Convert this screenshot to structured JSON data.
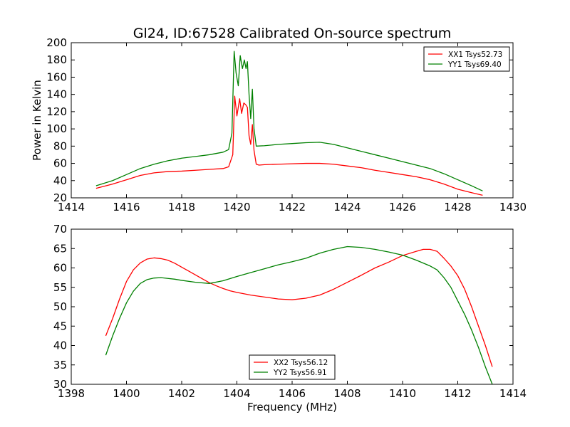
{
  "title": "Gl24, ID:67528 Calibrated On-source spectrum",
  "colors": {
    "red": "#ff0000",
    "green": "#008000",
    "axis": "#000000",
    "background": "#ffffff"
  },
  "chart_data": [
    {
      "type": "line",
      "title": "Gl24, ID:67528 Calibrated On-source spectrum",
      "xlabel": "",
      "ylabel": "Power in Kelvin",
      "xlim": [
        1414,
        1430
      ],
      "ylim": [
        20,
        200
      ],
      "xticks": [
        1414,
        1416,
        1418,
        1420,
        1422,
        1424,
        1426,
        1428,
        1430
      ],
      "yticks": [
        20,
        40,
        60,
        80,
        100,
        120,
        140,
        160,
        180,
        200
      ],
      "grid": false,
      "legend_position": "top-right",
      "series": [
        {
          "name": "XX1 Tsys52.73",
          "color": "#ff0000",
          "points": [
            [
              1414.9,
              31
            ],
            [
              1415.5,
              36
            ],
            [
              1416.0,
              41
            ],
            [
              1416.5,
              46
            ],
            [
              1417.0,
              49
            ],
            [
              1417.5,
              50.5
            ],
            [
              1418.0,
              51
            ],
            [
              1418.5,
              52
            ],
            [
              1419.0,
              53
            ],
            [
              1419.5,
              54
            ],
            [
              1419.7,
              56
            ],
            [
              1419.85,
              70
            ],
            [
              1419.92,
              138
            ],
            [
              1420.0,
              115
            ],
            [
              1420.1,
              135
            ],
            [
              1420.17,
              118
            ],
            [
              1420.25,
              130
            ],
            [
              1420.32,
              128
            ],
            [
              1420.38,
              125
            ],
            [
              1420.44,
              92
            ],
            [
              1420.5,
              82
            ],
            [
              1420.56,
              105
            ],
            [
              1420.62,
              75
            ],
            [
              1420.7,
              59
            ],
            [
              1420.8,
              58
            ],
            [
              1421.0,
              58.5
            ],
            [
              1421.5,
              59
            ],
            [
              1422.0,
              59.5
            ],
            [
              1422.5,
              60
            ],
            [
              1423.0,
              60
            ],
            [
              1423.5,
              59
            ],
            [
              1424.0,
              57
            ],
            [
              1424.5,
              55
            ],
            [
              1425.0,
              52
            ],
            [
              1425.5,
              49.5
            ],
            [
              1426.0,
              47
            ],
            [
              1426.5,
              44.5
            ],
            [
              1427.0,
              41
            ],
            [
              1427.5,
              36
            ],
            [
              1428.0,
              30
            ],
            [
              1428.5,
              26
            ],
            [
              1428.9,
              23
            ]
          ]
        },
        {
          "name": "YY1 Tsys69.40",
          "color": "#008000",
          "points": [
            [
              1414.9,
              34
            ],
            [
              1415.5,
              40
            ],
            [
              1416.0,
              47
            ],
            [
              1416.5,
              54
            ],
            [
              1417.0,
              59
            ],
            [
              1417.5,
              63
            ],
            [
              1418.0,
              66
            ],
            [
              1418.5,
              68
            ],
            [
              1419.0,
              70
            ],
            [
              1419.5,
              73
            ],
            [
              1419.7,
              76
            ],
            [
              1419.82,
              95
            ],
            [
              1419.9,
              190
            ],
            [
              1419.97,
              165
            ],
            [
              1420.05,
              150
            ],
            [
              1420.12,
              185
            ],
            [
              1420.2,
              170
            ],
            [
              1420.27,
              180
            ],
            [
              1420.33,
              170
            ],
            [
              1420.38,
              178
            ],
            [
              1420.44,
              140
            ],
            [
              1420.5,
              112
            ],
            [
              1420.56,
              146
            ],
            [
              1420.62,
              100
            ],
            [
              1420.7,
              80
            ],
            [
              1421.0,
              80.5
            ],
            [
              1421.5,
              82
            ],
            [
              1422.0,
              83
            ],
            [
              1422.5,
              84
            ],
            [
              1423.0,
              84.5
            ],
            [
              1423.5,
              82
            ],
            [
              1424.0,
              78
            ],
            [
              1424.5,
              74
            ],
            [
              1425.0,
              70
            ],
            [
              1425.5,
              66
            ],
            [
              1426.0,
              62
            ],
            [
              1426.5,
              58
            ],
            [
              1427.0,
              54
            ],
            [
              1427.5,
              48
            ],
            [
              1428.0,
              41
            ],
            [
              1428.5,
              34
            ],
            [
              1428.9,
              28
            ]
          ]
        }
      ]
    },
    {
      "type": "line",
      "title": "",
      "xlabel": "Frequency (MHz)",
      "ylabel": "",
      "xlim": [
        1398,
        1414
      ],
      "ylim": [
        30,
        70
      ],
      "xticks": [
        1398,
        1400,
        1402,
        1404,
        1406,
        1408,
        1410,
        1412,
        1414
      ],
      "yticks": [
        30,
        35,
        40,
        45,
        50,
        55,
        60,
        65,
        70
      ],
      "grid": false,
      "legend_position": "bottom-center",
      "series": [
        {
          "name": "XX2 Tsys56.12",
          "color": "#ff0000",
          "points": [
            [
              1399.25,
              42.5
            ],
            [
              1399.5,
              47
            ],
            [
              1399.75,
              52
            ],
            [
              1400.0,
              56.5
            ],
            [
              1400.25,
              59.5
            ],
            [
              1400.5,
              61.3
            ],
            [
              1400.75,
              62.3
            ],
            [
              1401.0,
              62.6
            ],
            [
              1401.25,
              62.4
            ],
            [
              1401.5,
              62
            ],
            [
              1401.75,
              61.2
            ],
            [
              1402.0,
              60.2
            ],
            [
              1402.25,
              59.2
            ],
            [
              1402.5,
              58.2
            ],
            [
              1402.75,
              57.2
            ],
            [
              1403.0,
              56.2
            ],
            [
              1403.25,
              55.4
            ],
            [
              1403.5,
              54.7
            ],
            [
              1403.75,
              54.1
            ],
            [
              1404.0,
              53.7
            ],
            [
              1404.5,
              53
            ],
            [
              1405.0,
              52.5
            ],
            [
              1405.5,
              52
            ],
            [
              1406.0,
              51.8
            ],
            [
              1406.5,
              52.2
            ],
            [
              1407.0,
              53
            ],
            [
              1407.5,
              54.5
            ],
            [
              1408.0,
              56.3
            ],
            [
              1408.5,
              58.1
            ],
            [
              1409.0,
              60
            ],
            [
              1409.5,
              61.5
            ],
            [
              1410.0,
              63.2
            ],
            [
              1410.5,
              64.3
            ],
            [
              1410.75,
              64.8
            ],
            [
              1411.0,
              64.8
            ],
            [
              1411.25,
              64.3
            ],
            [
              1411.5,
              62.5
            ],
            [
              1411.75,
              60.5
            ],
            [
              1412.0,
              58
            ],
            [
              1412.25,
              54.5
            ],
            [
              1412.5,
              50
            ],
            [
              1412.75,
              45
            ],
            [
              1413.0,
              40
            ],
            [
              1413.25,
              34.5
            ]
          ]
        },
        {
          "name": "YY2 Tsys56.91",
          "color": "#008000",
          "points": [
            [
              1399.25,
              37.5
            ],
            [
              1399.5,
              42.5
            ],
            [
              1399.75,
              47
            ],
            [
              1400.0,
              51
            ],
            [
              1400.25,
              54
            ],
            [
              1400.5,
              56
            ],
            [
              1400.75,
              57
            ],
            [
              1401.0,
              57.4
            ],
            [
              1401.25,
              57.5
            ],
            [
              1401.5,
              57.3
            ],
            [
              1401.75,
              57.1
            ],
            [
              1402.0,
              56.8
            ],
            [
              1402.5,
              56.3
            ],
            [
              1403.0,
              56
            ],
            [
              1403.5,
              56.7
            ],
            [
              1404.0,
              57.8
            ],
            [
              1404.5,
              58.8
            ],
            [
              1405.0,
              59.8
            ],
            [
              1405.5,
              60.8
            ],
            [
              1406.0,
              61.6
            ],
            [
              1406.5,
              62.5
            ],
            [
              1407.0,
              63.8
            ],
            [
              1407.5,
              64.8
            ],
            [
              1408.0,
              65.5
            ],
            [
              1408.5,
              65.3
            ],
            [
              1409.0,
              64.8
            ],
            [
              1409.5,
              64.1
            ],
            [
              1410.0,
              63.3
            ],
            [
              1410.5,
              62
            ],
            [
              1411.0,
              60.5
            ],
            [
              1411.25,
              59.5
            ],
            [
              1411.5,
              57.5
            ],
            [
              1411.75,
              55
            ],
            [
              1412.0,
              51.5
            ],
            [
              1412.25,
              48
            ],
            [
              1412.5,
              44
            ],
            [
              1412.75,
              39.5
            ],
            [
              1413.0,
              34.5
            ],
            [
              1413.25,
              30
            ]
          ]
        }
      ]
    }
  ]
}
